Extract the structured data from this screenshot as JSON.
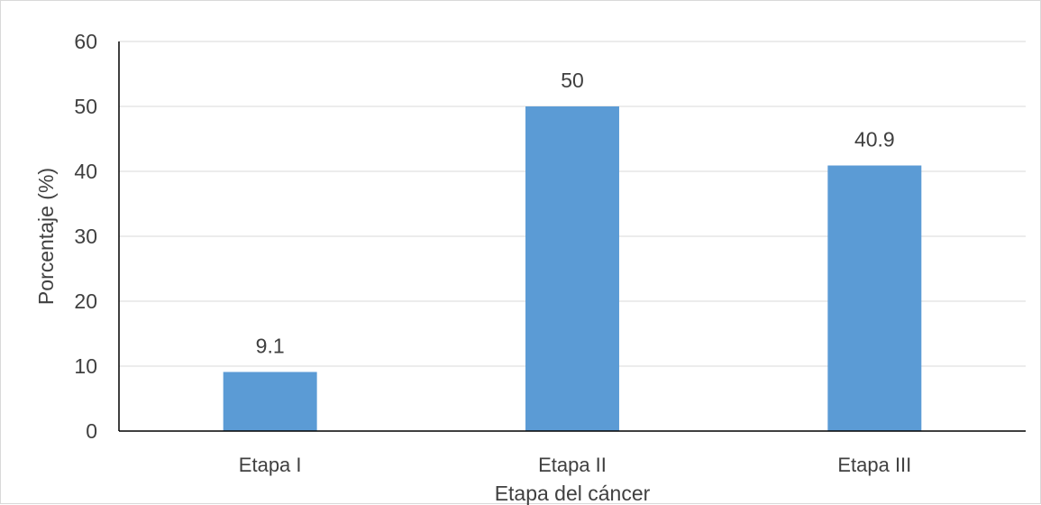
{
  "chart_data": {
    "type": "bar",
    "categories": [
      "Etapa I",
      "Etapa II",
      "Etapa III"
    ],
    "values": [
      9.1,
      50,
      40.9
    ],
    "data_labels": [
      "9.1",
      "50",
      "40.9"
    ],
    "title": "",
    "xlabel": "Etapa del cáncer",
    "ylabel": "Porcentaje (%)",
    "ylim": [
      0,
      60
    ],
    "yticks": [
      "0",
      "10",
      "20",
      "30",
      "40",
      "50",
      "60"
    ],
    "grid": true,
    "legend": "none",
    "colors": {
      "bar": "#5B9BD5",
      "grid": "#d9d9d9",
      "axis": "#000000",
      "text": "#404040"
    }
  }
}
